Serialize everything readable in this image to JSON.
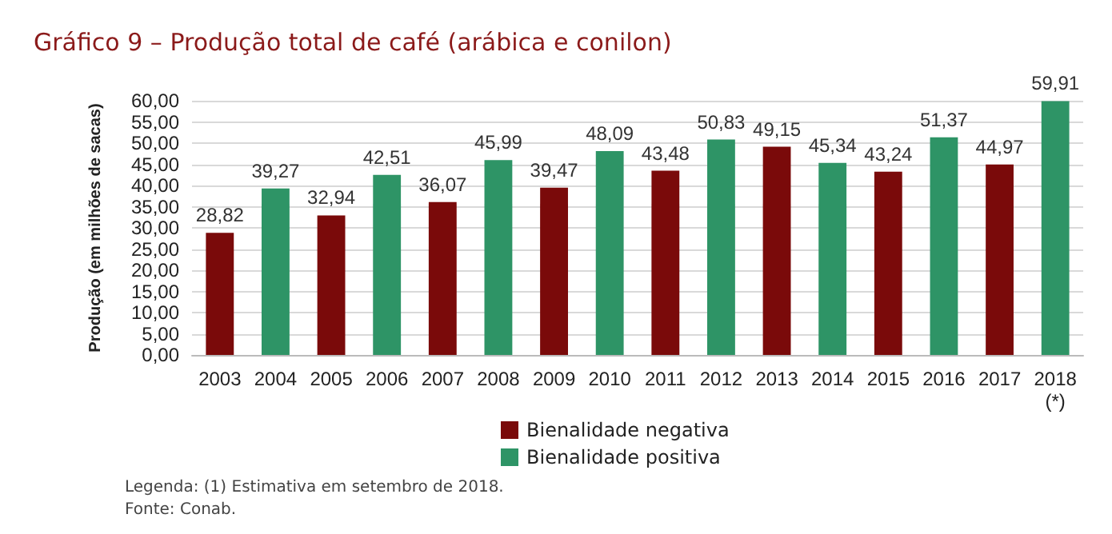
{
  "chart_data": {
    "type": "bar",
    "title": "Gráfico 9 – Produção total de café (arábica e conilon)",
    "ylabel": "Produção (em milhões de sacas)",
    "categories": [
      "2003",
      "2004",
      "2005",
      "2006",
      "2007",
      "2008",
      "2009",
      "2010",
      "2011",
      "2012",
      "2013",
      "2014",
      "2015",
      "2016",
      "2017",
      "2018\n(*)"
    ],
    "series": [
      {
        "name": "Bienalidade negativa",
        "color": "#7a0a0a",
        "values": [
          28.82,
          null,
          32.94,
          null,
          36.07,
          null,
          39.47,
          null,
          43.48,
          null,
          49.15,
          null,
          43.24,
          null,
          44.97,
          null
        ],
        "value_labels": [
          "28,82",
          null,
          "32,94",
          null,
          "36,07",
          null,
          "39,47",
          null,
          "43,48",
          null,
          "49,15",
          null,
          "43,24",
          null,
          "44,97",
          null
        ]
      },
      {
        "name": "Bienalidade positiva",
        "color": "#2e9466",
        "values": [
          null,
          39.27,
          null,
          42.51,
          null,
          45.99,
          null,
          48.09,
          null,
          50.83,
          null,
          45.34,
          null,
          51.37,
          null,
          59.91
        ],
        "value_labels": [
          null,
          "39,27",
          null,
          "42,51",
          null,
          "45,99",
          null,
          "48,09",
          null,
          "50,83",
          null,
          "45,34",
          null,
          "51,37",
          null,
          "59,91"
        ]
      }
    ],
    "ylim": [
      0,
      60
    ],
    "yticks": [
      {
        "value": 0,
        "label": "0,00"
      },
      {
        "value": 5,
        "label": "5,00"
      },
      {
        "value": 10,
        "label": "10,00"
      },
      {
        "value": 15,
        "label": "15,00"
      },
      {
        "value": 20,
        "label": "20,00"
      },
      {
        "value": 25,
        "label": "25,00"
      },
      {
        "value": 30,
        "label": "30,00"
      },
      {
        "value": 35,
        "label": "35,00"
      },
      {
        "value": 40,
        "label": "40,00"
      },
      {
        "value": 45,
        "label": "45,00"
      },
      {
        "value": 50,
        "label": "50,00"
      },
      {
        "value": 55,
        "label": "55,00"
      },
      {
        "value": 60,
        "label": "60,00"
      }
    ],
    "grid": "y",
    "legend": "bottom",
    "annotations": [
      "Legenda: (1) Estimativa em setembro de 2018.",
      "Fonte: Conab."
    ]
  }
}
